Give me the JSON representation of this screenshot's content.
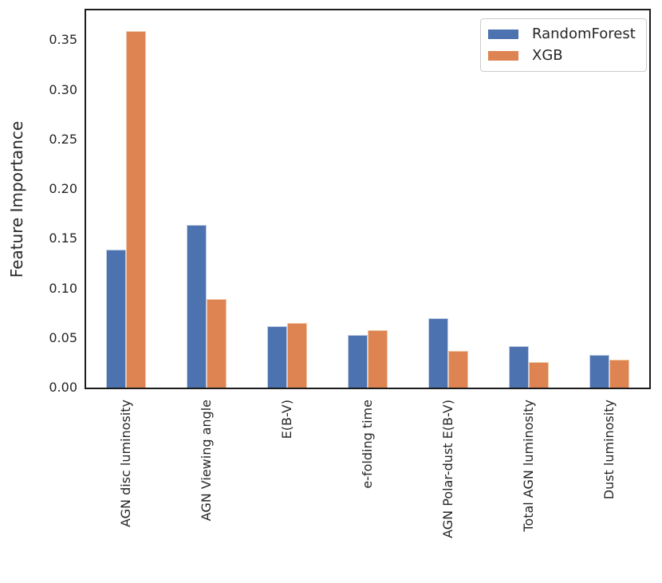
{
  "chart_data": {
    "type": "bar",
    "title": "",
    "xlabel": "",
    "ylabel": "Feature Importance",
    "categories": [
      "AGN disc luminosity",
      "AGN Viewing angle",
      "E(B-V)",
      "e-folding time",
      "AGN Polar-dust E(B-V)",
      "Total AGN luminosity",
      "Dust luminosity"
    ],
    "series": [
      {
        "name": "RandomForest",
        "color": "#4C72B0",
        "edge_color": "#c2cde4",
        "values": [
          0.139,
          0.164,
          0.062,
          0.053,
          0.07,
          0.042,
          0.033
        ]
      },
      {
        "name": "XGB",
        "color": "#DD8452",
        "edge_color": "#f0c7a6",
        "values": [
          0.359,
          0.089,
          0.065,
          0.058,
          0.037,
          0.026,
          0.028
        ]
      }
    ],
    "ylim": [
      0,
      0.38
    ],
    "yticks": [
      "0.00",
      "0.05",
      "0.10",
      "0.15",
      "0.20",
      "0.25",
      "0.30",
      "0.35"
    ],
    "grid": false,
    "legend_position": "upper right",
    "x_tick_rotation": 90,
    "spine_color": "#1c1c1c",
    "text_color": "#262626",
    "background_color": "#ffffff"
  }
}
